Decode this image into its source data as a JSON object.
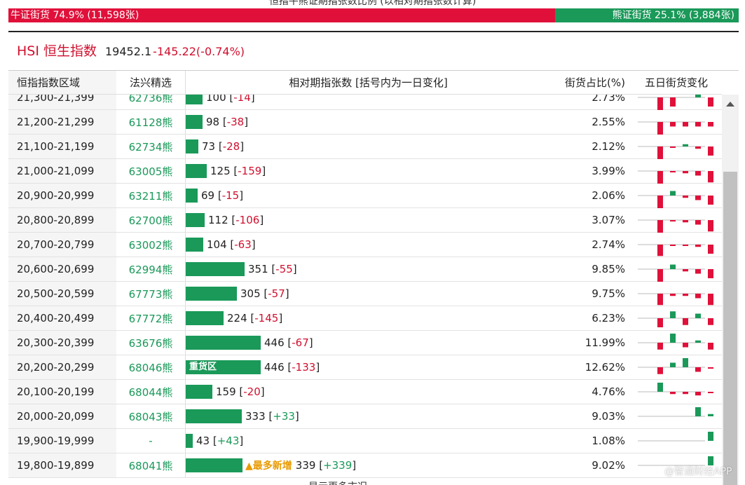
{
  "top_title": "恒指牛熊证期指张数比例 (以相对期指张数计算)",
  "ratio": {
    "bull_label": "牛证街货 74.9% (11,598张)",
    "bear_label": "熊证街货 25.1% (3,884张)"
  },
  "index": {
    "name": "HSI 恒生指数",
    "value": "19452.1",
    "change": "-145.22(-0.74%)"
  },
  "table": {
    "headers": {
      "range": "恒指指数区域",
      "warrant": "法兴精选",
      "count": "相对期指张数 [括号内为一日变化]",
      "pct": "街货占比(%)",
      "five_day": "五日街货变化"
    },
    "rows": [
      {
        "range": "21,300-21,399",
        "warrant": "62736熊",
        "count": 100,
        "count_label": "100",
        "change": "-14",
        "pct": "2.73%",
        "five": [
          -3,
          -2,
          0,
          1,
          -2
        ]
      },
      {
        "range": "21,200-21,299",
        "warrant": "61128熊",
        "count": 98,
        "count_label": "98",
        "change": "-38",
        "pct": "2.55%",
        "five": [
          -3,
          -1,
          -1,
          -1,
          -1
        ]
      },
      {
        "range": "21,100-21,199",
        "warrant": "62734熊",
        "count": 73,
        "count_label": "73",
        "change": "-28",
        "pct": "2.12%",
        "five": [
          -3,
          -0.3,
          0.5,
          -0.5,
          -2
        ]
      },
      {
        "range": "21,000-21,099",
        "warrant": "63005熊",
        "count": 125,
        "count_label": "125",
        "change": "-159",
        "pct": "3.99%",
        "five": [
          -3,
          -0.3,
          -0.5,
          -1,
          -2.5
        ]
      },
      {
        "range": "20,900-20,999",
        "warrant": "63211熊",
        "count": 69,
        "count_label": "69",
        "change": "-15",
        "pct": "2.06%",
        "five": [
          -3,
          1,
          -0.5,
          -1,
          -2
        ]
      },
      {
        "range": "20,800-20,899",
        "warrant": "62700熊",
        "count": 112,
        "count_label": "112",
        "change": "-106",
        "pct": "3.07%",
        "five": [
          -3,
          -0.3,
          -0.5,
          -1,
          -2.5
        ]
      },
      {
        "range": "20,700-20,799",
        "warrant": "63002熊",
        "count": 104,
        "count_label": "104",
        "change": "-63",
        "pct": "2.74%",
        "five": [
          -2.5,
          -0.3,
          -0.3,
          -0.5,
          -2
        ]
      },
      {
        "range": "20,600-20,699",
        "warrant": "62994熊",
        "count": 351,
        "count_label": "351",
        "change": "-55",
        "pct": "9.85%",
        "five": [
          -3,
          1,
          -0.5,
          -1,
          -2
        ]
      },
      {
        "range": "20,500-20,599",
        "warrant": "67773熊",
        "count": 305,
        "count_label": "305",
        "change": "-57",
        "pct": "9.75%",
        "five": [
          -2.5,
          -0.5,
          -0.5,
          -1,
          -2.5
        ]
      },
      {
        "range": "20,400-20,499",
        "warrant": "67772熊",
        "count": 224,
        "count_label": "224",
        "change": "-145",
        "pct": "6.23%",
        "five": [
          -2,
          1.5,
          -1.5,
          1,
          -1.5
        ]
      },
      {
        "range": "20,300-20,399",
        "warrant": "63676熊",
        "count": 446,
        "count_label": "446",
        "change": "-67",
        "pct": "11.99%",
        "five": [
          -1.5,
          2,
          -1,
          0.5,
          -1.5
        ]
      },
      {
        "range": "20,200-20,299",
        "warrant": "68046熊",
        "count": 446,
        "count_label": "446",
        "change": "-133",
        "pct": "12.62%",
        "five": [
          -1.5,
          1,
          2,
          -1,
          -0.3
        ]
      },
      {
        "range": "20,100-20,199",
        "warrant": "68044熊",
        "count": 159,
        "count_label": "159",
        "change": "-20",
        "pct": "4.76%",
        "five": [
          2,
          -0.5,
          -0.5,
          -0.8,
          -0.3
        ]
      },
      {
        "range": "20,000-20,099",
        "warrant": "68043熊",
        "count": 333,
        "count_label": "333",
        "change": "+33",
        "pct": "9.03%",
        "five": [
          0,
          0,
          0,
          2,
          0.5
        ]
      },
      {
        "range": "19,900-19,999",
        "warrant": "-",
        "count": 43,
        "count_label": "43",
        "change": "+43",
        "pct": "1.08%",
        "five": [
          0,
          0,
          0,
          0,
          2
        ]
      },
      {
        "range": "19,800-19,899",
        "warrant": "68041熊",
        "count": 339,
        "count_label": "339",
        "change": "+339",
        "pct": "9.02%",
        "five": [
          0,
          0,
          0,
          0,
          2
        ]
      }
    ],
    "tags": {
      "heavy_zone": "重货区",
      "most_new": "▲最多新增"
    }
  },
  "bottom_text": "显示更多市况",
  "watermark": "@智通财经APP",
  "colors": {
    "red": "#e0103a",
    "green": "#1a9959",
    "orange": "#e89a00"
  }
}
